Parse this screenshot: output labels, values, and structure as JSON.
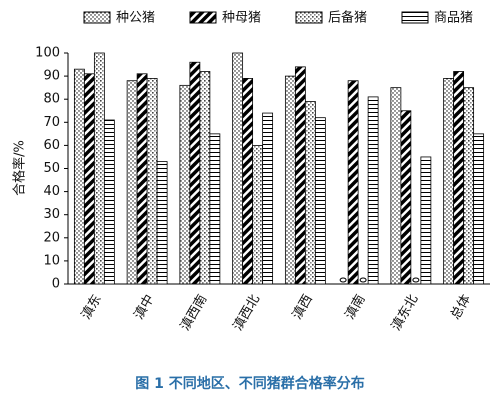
{
  "chart_data": {
    "type": "bar",
    "title": "图 1   不同地区、不同猪群合格率分布",
    "ylabel": "合格率/%",
    "categories": [
      "滇东",
      "滇中",
      "滇西南",
      "滇西北",
      "滇西",
      "滇南",
      "滇东北",
      "总体"
    ],
    "series": [
      {
        "name": "种公猪",
        "color": "#000000",
        "values": [
          93,
          88,
          86,
          100,
          90,
          0,
          85,
          89
        ]
      },
      {
        "name": "种母猪",
        "color": "#000000",
        "values": [
          91,
          91,
          96,
          89,
          94,
          88,
          75,
          92
        ]
      },
      {
        "name": "后备猪",
        "color": "#000000",
        "values": [
          100,
          89,
          92,
          60,
          79,
          0,
          0,
          85
        ]
      },
      {
        "name": "商品猪",
        "color": "#000000",
        "values": [
          71,
          53,
          65,
          74,
          72,
          81,
          55,
          65
        ]
      }
    ],
    "ylim": [
      0,
      100
    ],
    "yticks": [
      0,
      10,
      20,
      30,
      40,
      50,
      60,
      70,
      80,
      90,
      100
    ]
  }
}
